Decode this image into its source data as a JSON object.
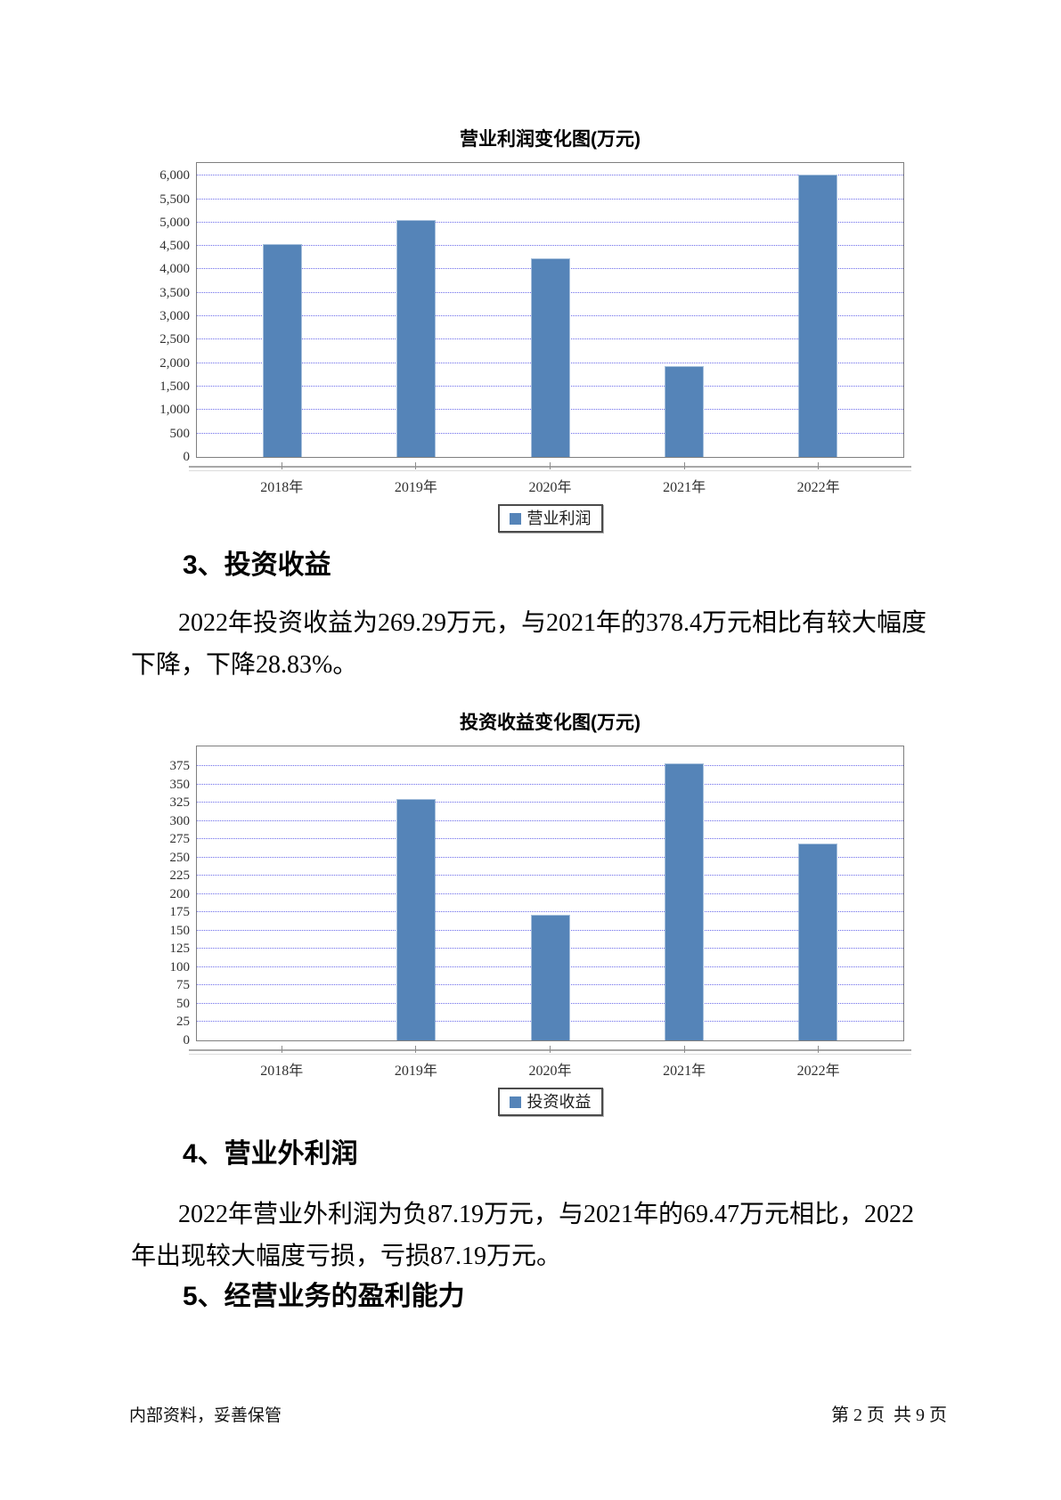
{
  "document": {
    "heading_3": "3、投资收益",
    "paragraph_3_lines": [
      "2022年投资收益为269.29万元，与2021年的378.4万元相比有较大幅度",
      "下降，下降28.83%。"
    ],
    "heading_4": "4、营业外利润",
    "paragraph_4_lines": [
      "2022年营业外利润为负87.19万元，与2021年的69.47万元相比，2022",
      "年出现较大幅度亏损，亏损87.19万元。"
    ],
    "heading_5": "5、经营业务的盈利能力",
    "footer_left": "内部资料，妥善保管",
    "footer_right": "第 2 页  共 9 页"
  },
  "chart_data": [
    {
      "type": "bar",
      "title": "营业利润变化图(万元)",
      "categories": [
        "2018年",
        "2019年",
        "2020年",
        "2021年",
        "2022年"
      ],
      "series": [
        {
          "name": "营业利润",
          "values": [
            4540,
            5060,
            4240,
            1930,
            6020
          ]
        }
      ],
      "xlabel": "",
      "ylabel": "",
      "ylim": [
        0,
        6270
      ],
      "ytick_step": 500,
      "ytick_max": 6000,
      "y_comma": true,
      "grid": true,
      "legend_position": "bottom",
      "bar_color": "#5584B8",
      "bar_border": "#a7c0dc",
      "grid_color": "#6b6bea"
    },
    {
      "type": "bar",
      "title": "投资收益变化图(万元)",
      "categories": [
        "2018年",
        "2019年",
        "2020年",
        "2021年",
        "2022年"
      ],
      "series": [
        {
          "name": "投资收益",
          "values": [
            0,
            330,
            172,
            378.4,
            269.29
          ]
        }
      ],
      "xlabel": "",
      "ylabel": "",
      "ylim": [
        0,
        402
      ],
      "ytick_step": 25,
      "ytick_max": 375,
      "y_comma": false,
      "grid": true,
      "legend_position": "bottom",
      "bar_color": "#5584B8",
      "bar_border": "#a7c0dc",
      "grid_color": "#6b6bea"
    }
  ]
}
